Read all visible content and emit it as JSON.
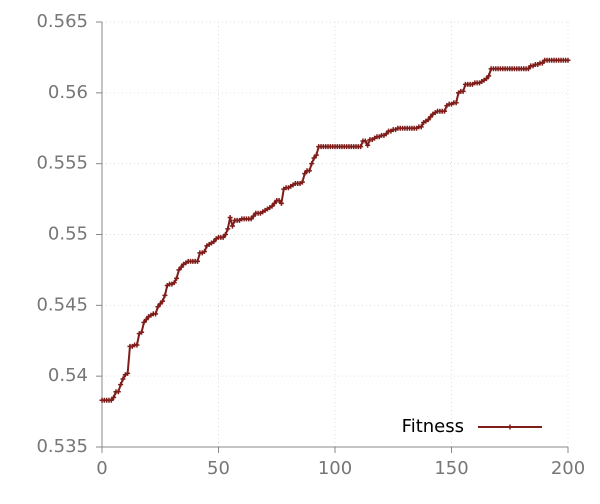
{
  "chart_data": {
    "type": "line",
    "x": [
      0,
      1,
      2,
      3,
      4,
      5,
      6,
      7,
      8,
      9,
      10,
      11,
      12,
      13,
      14,
      15,
      16,
      17,
      18,
      19,
      20,
      21,
      22,
      23,
      24,
      25,
      26,
      27,
      28,
      29,
      30,
      31,
      32,
      33,
      34,
      35,
      36,
      37,
      38,
      39,
      40,
      41,
      42,
      43,
      44,
      45,
      46,
      47,
      48,
      49,
      50,
      51,
      52,
      53,
      54,
      55,
      56,
      57,
      58,
      59,
      60,
      61,
      62,
      63,
      64,
      65,
      66,
      67,
      68,
      69,
      70,
      71,
      72,
      73,
      74,
      75,
      76,
      77,
      78,
      79,
      80,
      81,
      82,
      83,
      84,
      85,
      86,
      87,
      88,
      89,
      90,
      91,
      92,
      93,
      94,
      95,
      96,
      97,
      98,
      99,
      100,
      101,
      102,
      103,
      104,
      105,
      106,
      107,
      108,
      109,
      110,
      111,
      112,
      113,
      114,
      115,
      116,
      117,
      118,
      119,
      120,
      121,
      122,
      123,
      124,
      125,
      126,
      127,
      128,
      129,
      130,
      131,
      132,
      133,
      134,
      135,
      136,
      137,
      138,
      139,
      140,
      141,
      142,
      143,
      144,
      145,
      146,
      147,
      148,
      149,
      150,
      151,
      152,
      153,
      154,
      155,
      156,
      157,
      158,
      159,
      160,
      161,
      162,
      163,
      164,
      165,
      166,
      167,
      168,
      169,
      170,
      171,
      172,
      173,
      174,
      175,
      176,
      177,
      178,
      179,
      180,
      181,
      182,
      183,
      184,
      185,
      186,
      187,
      188,
      189,
      190,
      191,
      192,
      193,
      194,
      195,
      196,
      197,
      198,
      199,
      200
    ],
    "series": [
      {
        "name": "Fitness",
        "color": "#7f1d1a",
        "values": [
          0.5383,
          0.5383,
          0.5383,
          0.5383,
          0.5383,
          0.5385,
          0.5389,
          0.5389,
          0.5394,
          0.5398,
          0.5401,
          0.5402,
          0.5421,
          0.5421,
          0.5422,
          0.5422,
          0.543,
          0.5431,
          0.5438,
          0.544,
          0.5442,
          0.5443,
          0.5444,
          0.5444,
          0.5449,
          0.5451,
          0.5453,
          0.5457,
          0.5464,
          0.5465,
          0.5465,
          0.5466,
          0.5469,
          0.5475,
          0.5477,
          0.5479,
          0.548,
          0.5481,
          0.5481,
          0.5481,
          0.5481,
          0.5481,
          0.5487,
          0.5487,
          0.5488,
          0.5492,
          0.5493,
          0.5494,
          0.5495,
          0.5497,
          0.5498,
          0.5498,
          0.5498,
          0.55,
          0.5504,
          0.5512,
          0.5506,
          0.551,
          0.551,
          0.551,
          0.5511,
          0.5511,
          0.5511,
          0.5511,
          0.5511,
          0.5513,
          0.5515,
          0.5515,
          0.5515,
          0.5516,
          0.5517,
          0.5518,
          0.5519,
          0.552,
          0.5522,
          0.5524,
          0.5524,
          0.5522,
          0.5532,
          0.5533,
          0.5533,
          0.5534,
          0.5535,
          0.5536,
          0.5536,
          0.5536,
          0.5537,
          0.5543,
          0.5545,
          0.5545,
          0.555,
          0.5554,
          0.5556,
          0.5562,
          0.5562,
          0.5562,
          0.5562,
          0.5562,
          0.5562,
          0.5562,
          0.5562,
          0.5562,
          0.5562,
          0.5562,
          0.5562,
          0.5562,
          0.5562,
          0.5562,
          0.5562,
          0.5562,
          0.5562,
          0.5562,
          0.5566,
          0.5566,
          0.5563,
          0.5567,
          0.5567,
          0.5568,
          0.5569,
          0.5569,
          0.557,
          0.557,
          0.5571,
          0.5573,
          0.5573,
          0.5574,
          0.5574,
          0.5575,
          0.5575,
          0.5575,
          0.5575,
          0.5575,
          0.5575,
          0.5575,
          0.5575,
          0.5575,
          0.5576,
          0.5576,
          0.5579,
          0.558,
          0.5581,
          0.5583,
          0.5585,
          0.5586,
          0.5587,
          0.5587,
          0.5587,
          0.5587,
          0.5591,
          0.5592,
          0.5592,
          0.5593,
          0.5593,
          0.56,
          0.5601,
          0.5601,
          0.5606,
          0.5606,
          0.5606,
          0.5606,
          0.5607,
          0.5607,
          0.5607,
          0.5608,
          0.5609,
          0.561,
          0.5612,
          0.5617,
          0.5617,
          0.5617,
          0.5617,
          0.5617,
          0.5617,
          0.5617,
          0.5617,
          0.5617,
          0.5617,
          0.5617,
          0.5617,
          0.5617,
          0.5617,
          0.5617,
          0.5617,
          0.5617,
          0.5619,
          0.5619,
          0.562,
          0.562,
          0.5621,
          0.5621,
          0.5623,
          0.5623,
          0.5623,
          0.5623,
          0.5623,
          0.5623,
          0.5623,
          0.5623,
          0.5623,
          0.5623,
          0.5623
        ]
      }
    ],
    "xlim": [
      0,
      200
    ],
    "xticks": [
      0,
      50,
      100,
      150,
      200
    ],
    "ylim": [
      0.535,
      0.565
    ],
    "yticks": [
      0.535,
      0.54,
      0.545,
      0.55,
      0.555,
      0.56,
      0.565
    ],
    "grid": true,
    "legend": "lower right"
  }
}
